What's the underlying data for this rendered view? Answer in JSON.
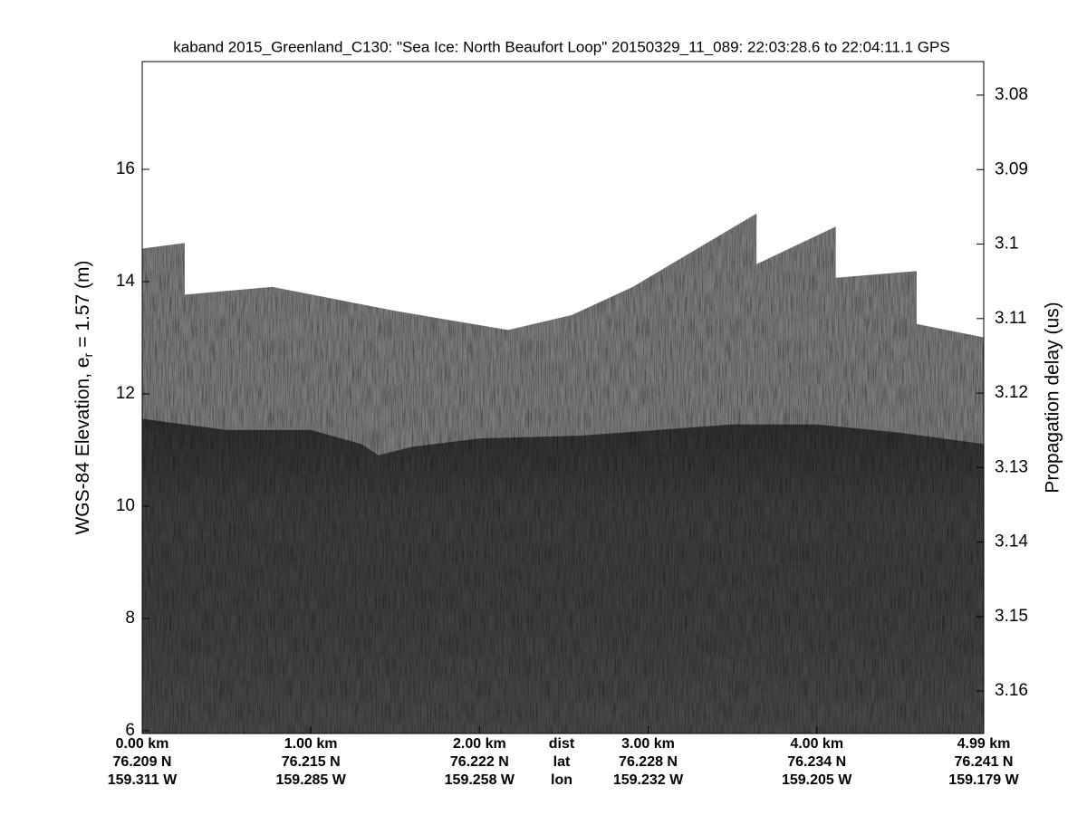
{
  "chart_data": {
    "type": "echogram",
    "title": "kaband 2015_Greenland_C130: \"Sea Ice: North Beaufort Loop\"  20150329_11_089: 22:03:28.6 to 22:04:11.1 GPS",
    "ylabel": [
      "WGS-84 Elevation, e",
      "r",
      "= 1.57 (m)"
    ],
    "y2label": "Propagation delay (us)",
    "xlim": [
      0,
      4.99
    ],
    "xticks": [
      {
        "value": 0,
        "label": "0.00 km"
      },
      {
        "value": 1,
        "label": "1.00 km"
      },
      {
        "value": 2,
        "label": "2.00 km"
      },
      {
        "value": 3,
        "label": "3.00 km"
      },
      {
        "value": 4,
        "label": "4.00 km"
      },
      {
        "value": 4.99,
        "label": "4.99 km"
      }
    ],
    "lat": [
      "76.209 N",
      "76.215 N",
      "76.222 N",
      "76.228 N",
      "76.234 N",
      "76.241 N"
    ],
    "lon": [
      "159.311 W",
      "159.285 W",
      "159.258 W",
      "159.232 W",
      "159.205 W",
      "159.179 W"
    ],
    "row_labels": [
      "dist",
      "lat",
      "lon"
    ],
    "ylim": [
      5.95,
      17.92
    ],
    "yticks": [
      6,
      8,
      10,
      12,
      14,
      16
    ],
    "y2lim": [
      3.1657,
      3.0755
    ],
    "y2ticks": [
      3.08,
      3.09,
      3.1,
      3.11,
      3.12,
      3.13,
      3.14,
      3.15,
      3.16
    ],
    "series": [
      {
        "color": "#7a7a7a",
        "x": [
          0,
          0.25,
          0.25,
          0.77,
          1.5,
          2.17,
          2.55,
          2.91,
          3.64,
          3.64,
          4.11,
          4.11,
          4.59,
          4.59,
          4.99
        ],
        "values": [
          14.58,
          14.68,
          13.76,
          13.9,
          13.47,
          13.13,
          13.4,
          13.9,
          15.2,
          14.3,
          14.97,
          14.06,
          14.18,
          13.24,
          13.0
        ]
      },
      {
        "color": "#3e3e3e",
        "x": [
          0,
          0.5,
          1.0,
          1.3,
          1.4,
          1.6,
          2.0,
          2.6,
          3.5,
          4.0,
          4.5,
          4.99
        ],
        "values": [
          11.55,
          11.35,
          11.35,
          11.1,
          10.9,
          11.05,
          11.2,
          11.25,
          11.45,
          11.45,
          11.3,
          11.1
        ]
      }
    ]
  }
}
